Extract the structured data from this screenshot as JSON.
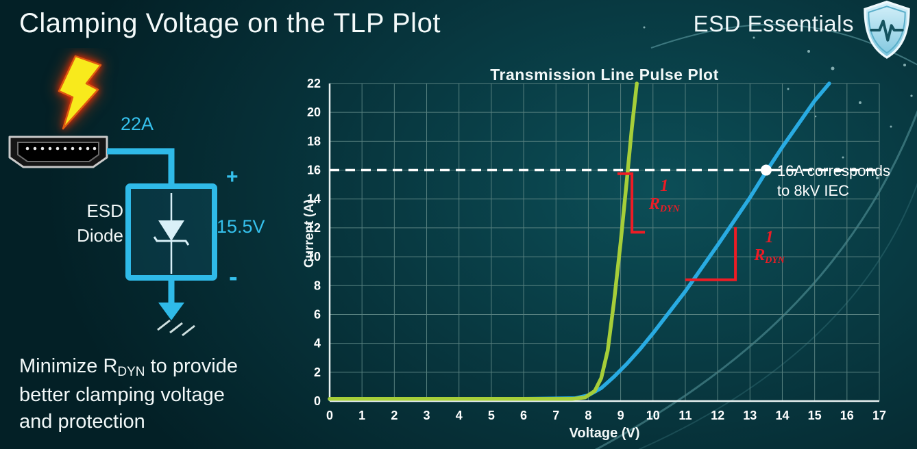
{
  "slide": {
    "title": "Clamping Voltage on the TLP Plot",
    "brand": "ESD Essentials"
  },
  "circuit": {
    "surge_current": "22A",
    "device_label_line1": "ESD",
    "device_label_line2": "Diode",
    "plus": "+",
    "clamp_voltage": "15.5V",
    "minus": "-"
  },
  "footer_note": {
    "line1_prefix": "Minimize R",
    "line1_sub": "DYN",
    "line1_suffix": " to provide",
    "line2": "better clamping voltage",
    "line3": "and protection"
  },
  "colors": {
    "accent_cyan": "#35c0ec",
    "curve_green": "#a6ce39",
    "curve_blue": "#29abe2",
    "annotation_red": "#ee1c25",
    "grid": "#57807f"
  },
  "chart_data": {
    "type": "line",
    "title": "Transmission Line Pulse Plot",
    "xlabel": "Voltage (V)",
    "ylabel": "Current (A)",
    "xlim": [
      0,
      17
    ],
    "ylim": [
      0,
      22
    ],
    "grid": true,
    "x_ticks": [
      0,
      1,
      2,
      3,
      4,
      5,
      6,
      7,
      8,
      9,
      10,
      11,
      12,
      13,
      14,
      15,
      16,
      17
    ],
    "y_ticks": [
      0,
      2,
      4,
      6,
      8,
      10,
      12,
      14,
      16,
      18,
      20,
      22
    ],
    "series": [
      {
        "name": "blue-curve",
        "color": "#29abe2",
        "points": [
          [
            0,
            0.15
          ],
          [
            2,
            0.15
          ],
          [
            4,
            0.15
          ],
          [
            6,
            0.15
          ],
          [
            7.6,
            0.2
          ],
          [
            8.0,
            0.4
          ],
          [
            8.4,
            0.9
          ],
          [
            8.8,
            1.7
          ],
          [
            9.2,
            2.6
          ],
          [
            9.6,
            3.6
          ],
          [
            10,
            4.7
          ],
          [
            11,
            7.6
          ],
          [
            12,
            10.8
          ],
          [
            13,
            14.1
          ],
          [
            13.5,
            15.9
          ],
          [
            14,
            17.6
          ],
          [
            15,
            20.8
          ],
          [
            15.45,
            22
          ]
        ]
      },
      {
        "name": "green-curve",
        "color": "#a6ce39",
        "points": [
          [
            0,
            0.15
          ],
          [
            2,
            0.15
          ],
          [
            4,
            0.15
          ],
          [
            6,
            0.15
          ],
          [
            7.5,
            0.15
          ],
          [
            7.9,
            0.25
          ],
          [
            8.2,
            0.7
          ],
          [
            8.4,
            1.6
          ],
          [
            8.6,
            3.5
          ],
          [
            8.8,
            7.0
          ],
          [
            9.0,
            11.0
          ],
          [
            9.2,
            15.5
          ],
          [
            9.35,
            19.0
          ],
          [
            9.5,
            22
          ]
        ]
      }
    ],
    "reference_line": {
      "y": 16,
      "style": "dashed",
      "color": "#ffffff"
    },
    "marker_point": {
      "x": 13.5,
      "y": 16,
      "color": "#ffffff"
    },
    "marker_label": {
      "line1": "16A corresponds",
      "line2": "to 8kV IEC"
    },
    "slope_annotations": [
      {
        "color": "#ee1c25",
        "points": [
          [
            8.9,
            15.75
          ],
          [
            9.35,
            15.75
          ],
          [
            9.35,
            11.7
          ],
          [
            9.75,
            11.7
          ]
        ],
        "label_anchor": {
          "x": 10.35,
          "y": 14.2
        },
        "label": {
          "numerator": "1",
          "denominator": "R",
          "denominator_sub": "DYN"
        }
      },
      {
        "color": "#ee1c25",
        "points": [
          [
            11.0,
            8.4
          ],
          [
            12.55,
            8.4
          ],
          [
            12.55,
            12.05
          ]
        ],
        "label_anchor": {
          "x": 13.6,
          "y": 10.6
        },
        "label": {
          "numerator": "1",
          "denominator": "R",
          "denominator_sub": "DYN"
        }
      }
    ]
  }
}
